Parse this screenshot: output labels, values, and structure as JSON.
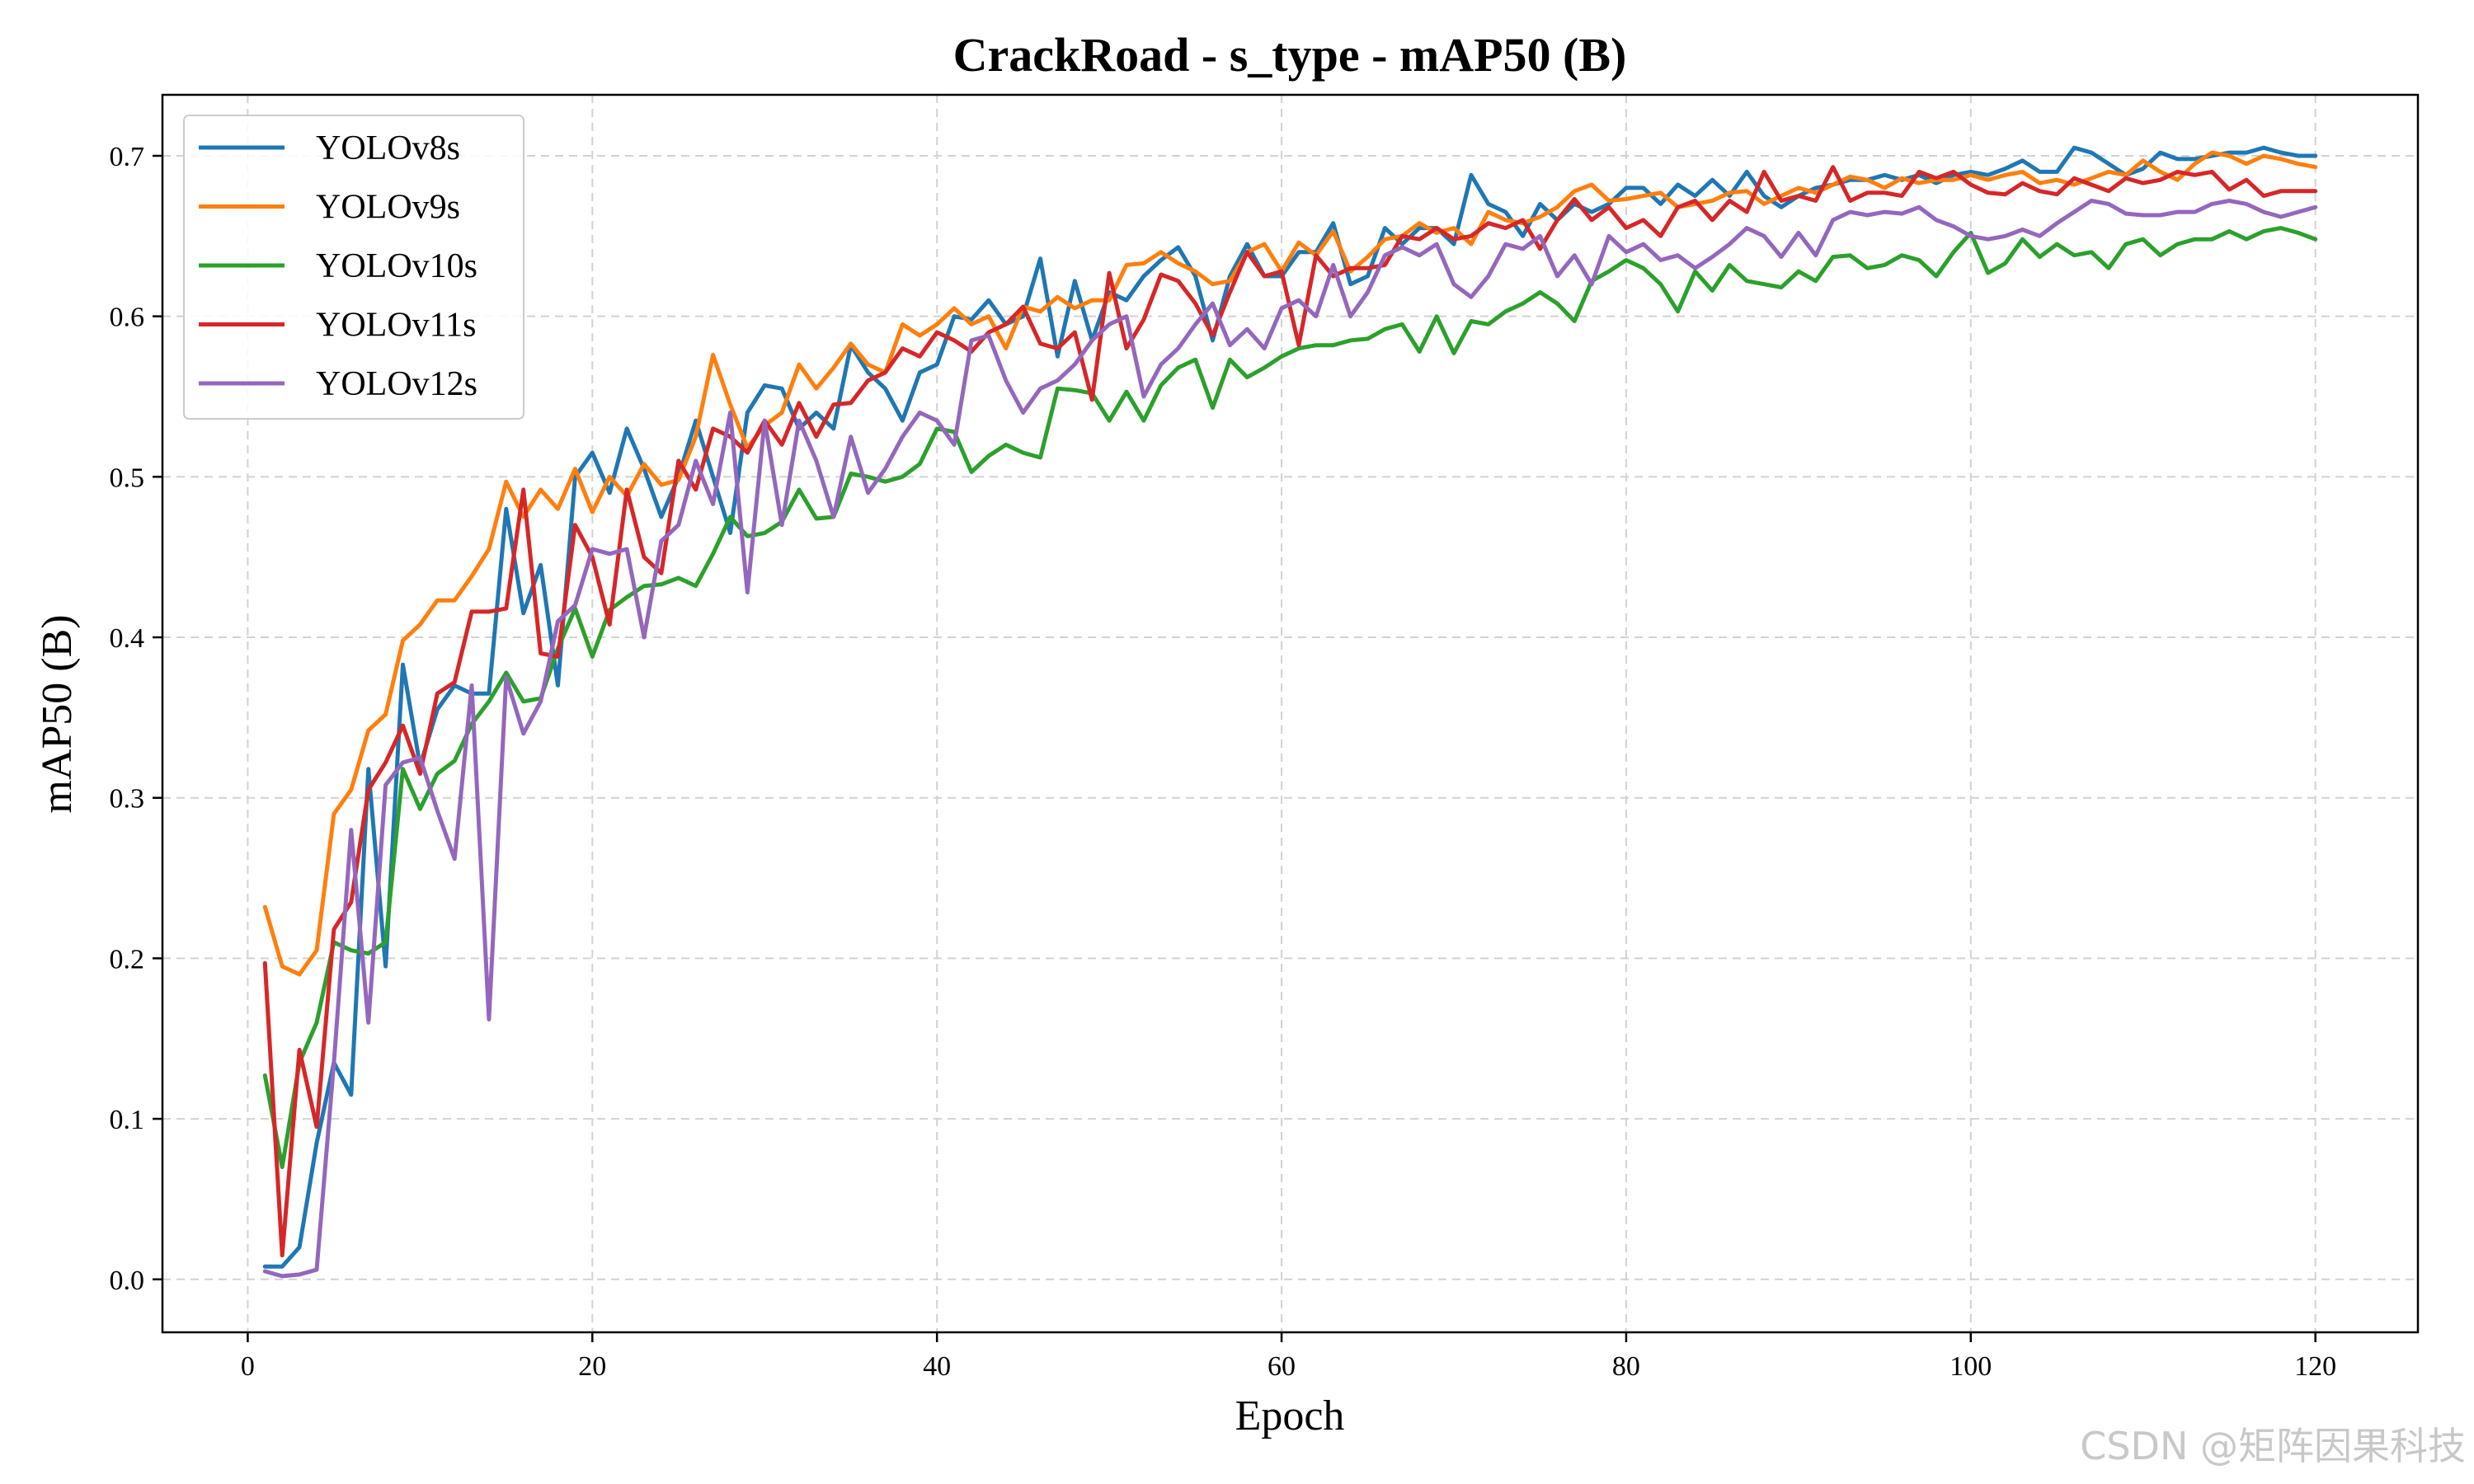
{
  "chart_data": {
    "type": "line",
    "title": "CrackRoad - s_type - mAP50 (B)",
    "xlabel": "Epoch",
    "ylabel": "mAP50 (B)",
    "xlim": [
      -4.95,
      125.95
    ],
    "ylim": [
      -0.033,
      0.738
    ],
    "x_ticks": [
      0,
      20,
      40,
      60,
      80,
      100,
      120
    ],
    "y_ticks": [
      0.0,
      0.1,
      0.2,
      0.3,
      0.4,
      0.5,
      0.6,
      0.7
    ],
    "x_tick_labels": [
      "0",
      "20",
      "40",
      "60",
      "80",
      "100",
      "120"
    ],
    "y_tick_labels": [
      "0.0",
      "0.1",
      "0.2",
      "0.3",
      "0.4",
      "0.5",
      "0.6",
      "0.7"
    ],
    "grid": true,
    "legend_position": "upper-left",
    "series": [
      {
        "name": "YOLOv8s",
        "color": "#1f77b4",
        "x_start": 1,
        "values": [
          0.008,
          0.008,
          0.02,
          0.085,
          0.135,
          0.115,
          0.318,
          0.195,
          0.383,
          0.32,
          0.355,
          0.37,
          0.365,
          0.365,
          0.48,
          0.415,
          0.445,
          0.37,
          0.5,
          0.515,
          0.49,
          0.53,
          0.505,
          0.475,
          0.5,
          0.535,
          0.5,
          0.465,
          0.54,
          0.557,
          0.555,
          0.53,
          0.54,
          0.53,
          0.582,
          0.565,
          0.555,
          0.535,
          0.565,
          0.57,
          0.6,
          0.598,
          0.61,
          0.595,
          0.6,
          0.636,
          0.575,
          0.622,
          0.585,
          0.615,
          0.61,
          0.625,
          0.635,
          0.643,
          0.625,
          0.585,
          0.625,
          0.645,
          0.625,
          0.625,
          0.64,
          0.64,
          0.658,
          0.62,
          0.625,
          0.655,
          0.645,
          0.655,
          0.655,
          0.645,
          0.688,
          0.67,
          0.665,
          0.65,
          0.67,
          0.66,
          0.67,
          0.665,
          0.67,
          0.68,
          0.68,
          0.67,
          0.682,
          0.675,
          0.685,
          0.675,
          0.69,
          0.675,
          0.668,
          0.675,
          0.68,
          0.682,
          0.685,
          0.685,
          0.688,
          0.685,
          0.688,
          0.683,
          0.688,
          0.69,
          0.688,
          0.692,
          0.697,
          0.69,
          0.69,
          0.705,
          0.702,
          0.695,
          0.688,
          0.692,
          0.702,
          0.698,
          0.698,
          0.7,
          0.702,
          0.702,
          0.705,
          0.702,
          0.7,
          0.7
        ]
      },
      {
        "name": "YOLOv9s",
        "color": "#ff7f0e",
        "x_start": 1,
        "values": [
          0.232,
          0.195,
          0.19,
          0.205,
          0.29,
          0.305,
          0.342,
          0.352,
          0.398,
          0.408,
          0.423,
          0.423,
          0.438,
          0.455,
          0.497,
          0.475,
          0.492,
          0.48,
          0.505,
          0.478,
          0.5,
          0.488,
          0.508,
          0.495,
          0.498,
          0.525,
          0.576,
          0.545,
          0.518,
          0.532,
          0.54,
          0.57,
          0.555,
          0.568,
          0.583,
          0.57,
          0.565,
          0.595,
          0.588,
          0.595,
          0.605,
          0.595,
          0.6,
          0.58,
          0.606,
          0.603,
          0.612,
          0.605,
          0.61,
          0.61,
          0.632,
          0.633,
          0.64,
          0.633,
          0.628,
          0.62,
          0.622,
          0.64,
          0.645,
          0.628,
          0.646,
          0.638,
          0.653,
          0.628,
          0.637,
          0.648,
          0.65,
          0.658,
          0.652,
          0.655,
          0.645,
          0.665,
          0.66,
          0.658,
          0.662,
          0.668,
          0.678,
          0.682,
          0.672,
          0.673,
          0.675,
          0.677,
          0.668,
          0.67,
          0.672,
          0.677,
          0.678,
          0.67,
          0.675,
          0.68,
          0.677,
          0.682,
          0.687,
          0.685,
          0.68,
          0.686,
          0.683,
          0.685,
          0.685,
          0.688,
          0.685,
          0.688,
          0.69,
          0.683,
          0.685,
          0.682,
          0.686,
          0.69,
          0.688,
          0.697,
          0.69,
          0.685,
          0.695,
          0.702,
          0.7,
          0.695,
          0.7,
          0.698,
          0.695,
          0.693
        ]
      },
      {
        "name": "YOLOv10s",
        "color": "#2ca02c",
        "x_start": 1,
        "values": [
          0.127,
          0.07,
          0.135,
          0.16,
          0.21,
          0.205,
          0.203,
          0.21,
          0.318,
          0.293,
          0.315,
          0.323,
          0.346,
          0.36,
          0.378,
          0.36,
          0.362,
          0.393,
          0.418,
          0.388,
          0.417,
          0.425,
          0.432,
          0.433,
          0.437,
          0.432,
          0.452,
          0.475,
          0.463,
          0.465,
          0.472,
          0.492,
          0.474,
          0.475,
          0.502,
          0.5,
          0.497,
          0.5,
          0.508,
          0.53,
          0.528,
          0.503,
          0.513,
          0.52,
          0.515,
          0.512,
          0.555,
          0.554,
          0.552,
          0.535,
          0.553,
          0.535,
          0.557,
          0.568,
          0.573,
          0.543,
          0.573,
          0.562,
          0.568,
          0.575,
          0.58,
          0.582,
          0.582,
          0.585,
          0.586,
          0.592,
          0.595,
          0.578,
          0.6,
          0.577,
          0.597,
          0.595,
          0.603,
          0.608,
          0.615,
          0.608,
          0.597,
          0.622,
          0.628,
          0.635,
          0.63,
          0.62,
          0.603,
          0.628,
          0.616,
          0.632,
          0.622,
          0.62,
          0.618,
          0.628,
          0.622,
          0.637,
          0.638,
          0.63,
          0.632,
          0.638,
          0.635,
          0.625,
          0.64,
          0.652,
          0.627,
          0.633,
          0.648,
          0.637,
          0.645,
          0.638,
          0.64,
          0.63,
          0.645,
          0.648,
          0.638,
          0.645,
          0.648,
          0.648,
          0.653,
          0.648,
          0.653,
          0.655,
          0.652,
          0.648
        ]
      },
      {
        "name": "YOLOv11s",
        "color": "#d62728",
        "x_start": 1,
        "values": [
          0.197,
          0.015,
          0.143,
          0.095,
          0.218,
          0.235,
          0.305,
          0.322,
          0.345,
          0.315,
          0.365,
          0.372,
          0.416,
          0.416,
          0.418,
          0.492,
          0.39,
          0.388,
          0.47,
          0.45,
          0.408,
          0.492,
          0.45,
          0.44,
          0.51,
          0.492,
          0.53,
          0.525,
          0.515,
          0.535,
          0.52,
          0.546,
          0.525,
          0.545,
          0.546,
          0.56,
          0.565,
          0.58,
          0.575,
          0.59,
          0.585,
          0.578,
          0.59,
          0.595,
          0.606,
          0.583,
          0.58,
          0.59,
          0.548,
          0.627,
          0.58,
          0.598,
          0.626,
          0.622,
          0.608,
          0.588,
          0.615,
          0.64,
          0.625,
          0.628,
          0.582,
          0.638,
          0.625,
          0.63,
          0.63,
          0.632,
          0.65,
          0.648,
          0.655,
          0.648,
          0.65,
          0.658,
          0.655,
          0.66,
          0.642,
          0.66,
          0.673,
          0.66,
          0.668,
          0.655,
          0.66,
          0.65,
          0.668,
          0.672,
          0.66,
          0.672,
          0.665,
          0.69,
          0.672,
          0.675,
          0.672,
          0.693,
          0.672,
          0.677,
          0.677,
          0.675,
          0.69,
          0.686,
          0.69,
          0.682,
          0.677,
          0.676,
          0.683,
          0.678,
          0.676,
          0.686,
          0.682,
          0.678,
          0.686,
          0.683,
          0.685,
          0.69,
          0.688,
          0.69,
          0.679,
          0.685,
          0.675,
          0.678,
          0.678,
          0.678
        ]
      },
      {
        "name": "YOLOv12s",
        "color": "#9467bd",
        "x_start": 1,
        "values": [
          0.005,
          0.002,
          0.003,
          0.006,
          0.135,
          0.28,
          0.16,
          0.308,
          0.322,
          0.325,
          0.292,
          0.262,
          0.37,
          0.162,
          0.375,
          0.34,
          0.36,
          0.41,
          0.42,
          0.455,
          0.452,
          0.455,
          0.4,
          0.46,
          0.47,
          0.51,
          0.483,
          0.54,
          0.428,
          0.535,
          0.47,
          0.535,
          0.51,
          0.475,
          0.525,
          0.49,
          0.505,
          0.525,
          0.54,
          0.535,
          0.52,
          0.585,
          0.588,
          0.56,
          0.54,
          0.555,
          0.56,
          0.57,
          0.585,
          0.595,
          0.6,
          0.55,
          0.57,
          0.58,
          0.595,
          0.608,
          0.582,
          0.592,
          0.58,
          0.605,
          0.61,
          0.6,
          0.632,
          0.6,
          0.615,
          0.638,
          0.643,
          0.638,
          0.645,
          0.62,
          0.612,
          0.625,
          0.645,
          0.642,
          0.65,
          0.625,
          0.638,
          0.62,
          0.65,
          0.64,
          0.645,
          0.635,
          0.638,
          0.63,
          0.637,
          0.645,
          0.655,
          0.65,
          0.637,
          0.652,
          0.638,
          0.66,
          0.665,
          0.663,
          0.665,
          0.664,
          0.668,
          0.66,
          0.656,
          0.65,
          0.648,
          0.65,
          0.654,
          0.65,
          0.658,
          0.665,
          0.672,
          0.67,
          0.664,
          0.663,
          0.663,
          0.665,
          0.665,
          0.67,
          0.672,
          0.67,
          0.665,
          0.662,
          0.665,
          0.668
        ]
      }
    ]
  },
  "watermark": "CSDN @矩阵因果科技"
}
